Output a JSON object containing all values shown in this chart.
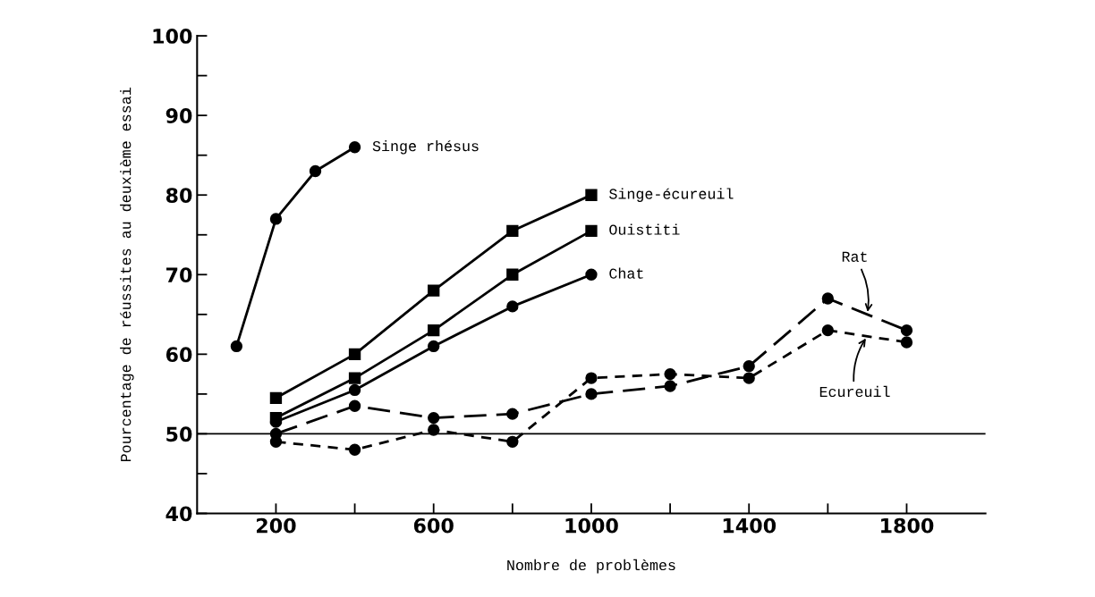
{
  "chart_data": {
    "type": "line",
    "xlabel": "Nombre de problèmes",
    "ylabel": "Pourcentage de réussites au deuxième essai",
    "xlim": [
      0,
      2000
    ],
    "ylim": [
      40,
      100
    ],
    "xticks": [
      200,
      {
        "value": 400,
        "label": null
      },
      600,
      {
        "value": 800,
        "label": null
      },
      1000,
      {
        "value": 1200,
        "label": null
      },
      1400,
      {
        "value": 1600,
        "label": null
      },
      1800
    ],
    "yticks": [
      40,
      {
        "value": 45,
        "label": null
      },
      50,
      {
        "value": 55,
        "label": null
      },
      60,
      {
        "value": 65,
        "label": null
      },
      70,
      {
        "value": 75,
        "label": null
      },
      80,
      {
        "value": 85,
        "label": null
      },
      90,
      {
        "value": 95,
        "label": null
      },
      100
    ],
    "grid": false,
    "legend": false,
    "ref_lines": [
      {
        "axis": "y",
        "value": 50,
        "color": "#000000"
      }
    ],
    "series": [
      {
        "name": "Singe rhésus",
        "color": "#000000",
        "marker": "circle",
        "line_style": "solid",
        "x": [
          100,
          200,
          300,
          400
        ],
        "values": [
          61,
          77,
          83,
          86
        ]
      },
      {
        "name": "Singe-écureuil",
        "color": "#000000",
        "marker": "square",
        "line_style": "solid",
        "x": [
          200,
          400,
          600,
          800,
          1000
        ],
        "values": [
          54.5,
          60,
          68,
          75.5,
          80
        ]
      },
      {
        "name": "Ouistiti",
        "color": "#000000",
        "marker": "square",
        "line_style": "solid",
        "x": [
          200,
          400,
          600,
          800,
          1000
        ],
        "values": [
          52,
          57,
          63,
          70,
          75.5
        ]
      },
      {
        "name": "Chat",
        "color": "#000000",
        "marker": "circle",
        "line_style": "solid",
        "x": [
          200,
          400,
          600,
          800,
          1000
        ],
        "values": [
          51.5,
          55.5,
          61,
          66,
          70
        ]
      },
      {
        "name": "Rat",
        "color": "#000000",
        "marker": "circle",
        "line_style": "dashed",
        "x": [
          200,
          400,
          600,
          800,
          1000,
          1200,
          1400,
          1600,
          1800
        ],
        "values": [
          50,
          53.5,
          52,
          52.5,
          55,
          56,
          58.5,
          67,
          63
        ]
      },
      {
        "name": "Ecureuil",
        "color": "#000000",
        "marker": "circle",
        "line_style": "dotted",
        "x": [
          200,
          400,
          600,
          800,
          1000,
          1200,
          1400,
          1600,
          1800
        ],
        "values": [
          49,
          48,
          50.5,
          49,
          57,
          57.5,
          57,
          63,
          61.5
        ]
      }
    ]
  }
}
